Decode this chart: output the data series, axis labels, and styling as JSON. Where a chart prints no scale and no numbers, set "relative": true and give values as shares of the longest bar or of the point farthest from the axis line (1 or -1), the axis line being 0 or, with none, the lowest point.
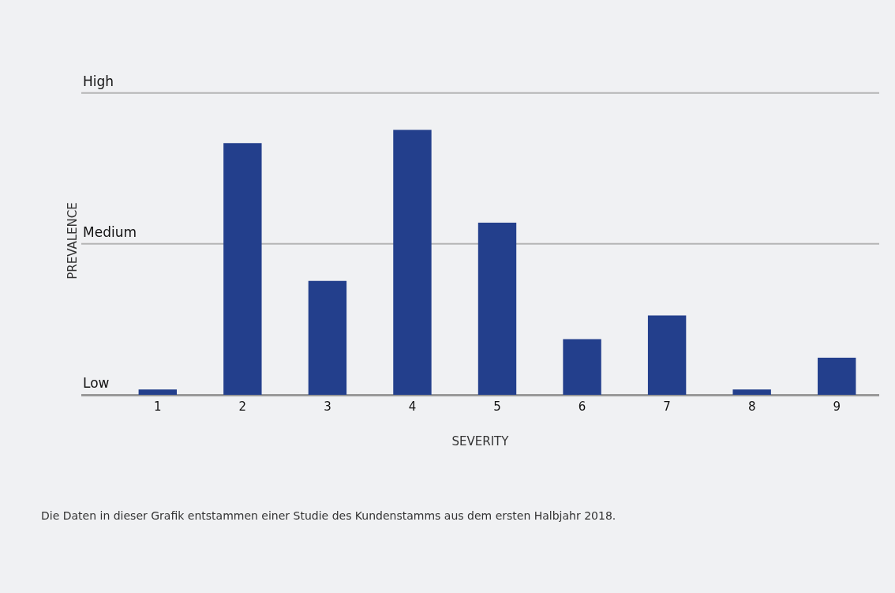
{
  "chart_data": {
    "type": "bar",
    "xlabel": "SEVERITY",
    "ylabel": "PREVALENCE",
    "relative": true,
    "categories": [
      "1",
      "2",
      "3",
      "4",
      "5",
      "6",
      "7",
      "8",
      "9"
    ],
    "values": [
      0.02,
      0.95,
      0.43,
      1,
      0.65,
      0.21,
      0.3,
      0.02,
      0.14
    ],
    "color": "#233f8c",
    "ref_lines": [
      {
        "axis": "y",
        "value": 0,
        "label": "Low",
        "color": "#999999"
      },
      {
        "axis": "y",
        "value": 0.57,
        "label": "Medium",
        "color": "#b5b5b5"
      },
      {
        "axis": "y",
        "value": 1.14,
        "label": "High",
        "color": "#b5b5b5"
      }
    ],
    "annotations": [
      "Die Daten in dieser Grafik entstammen einer Studie des Kundenstamms aus dem ersten Halbjahr 2018."
    ]
  }
}
